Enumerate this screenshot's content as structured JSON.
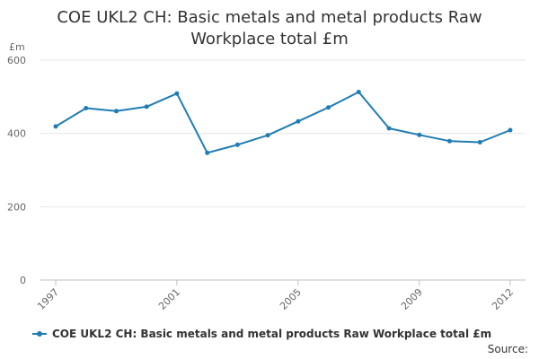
{
  "chart_data": {
    "type": "line",
    "title_lines": [
      "COE UKL2 CH: Basic metals and metal products Raw",
      "Workplace total £m"
    ],
    "unit_label": "£m",
    "x": [
      1997,
      1998,
      1999,
      2000,
      2001,
      2002,
      2003,
      2004,
      2005,
      2006,
      2007,
      2008,
      2009,
      2010,
      2011,
      2012
    ],
    "x_tick_labels": [
      "1997",
      "2001",
      "2005",
      "2009",
      "2012"
    ],
    "y_ticks": [
      0,
      200,
      400,
      600
    ],
    "ylim": [
      0,
      600
    ],
    "grid": true,
    "legend_position": "bottom",
    "series": [
      {
        "name": "COE UKL2 CH: Basic metals and metal products Raw Workplace total £m",
        "color": "#1f7cb4",
        "values": [
          419,
          469,
          461,
          473,
          509,
          347,
          369,
          395,
          433,
          471,
          513,
          414,
          396,
          379,
          376,
          409
        ]
      }
    ]
  },
  "source_label": "Source:"
}
